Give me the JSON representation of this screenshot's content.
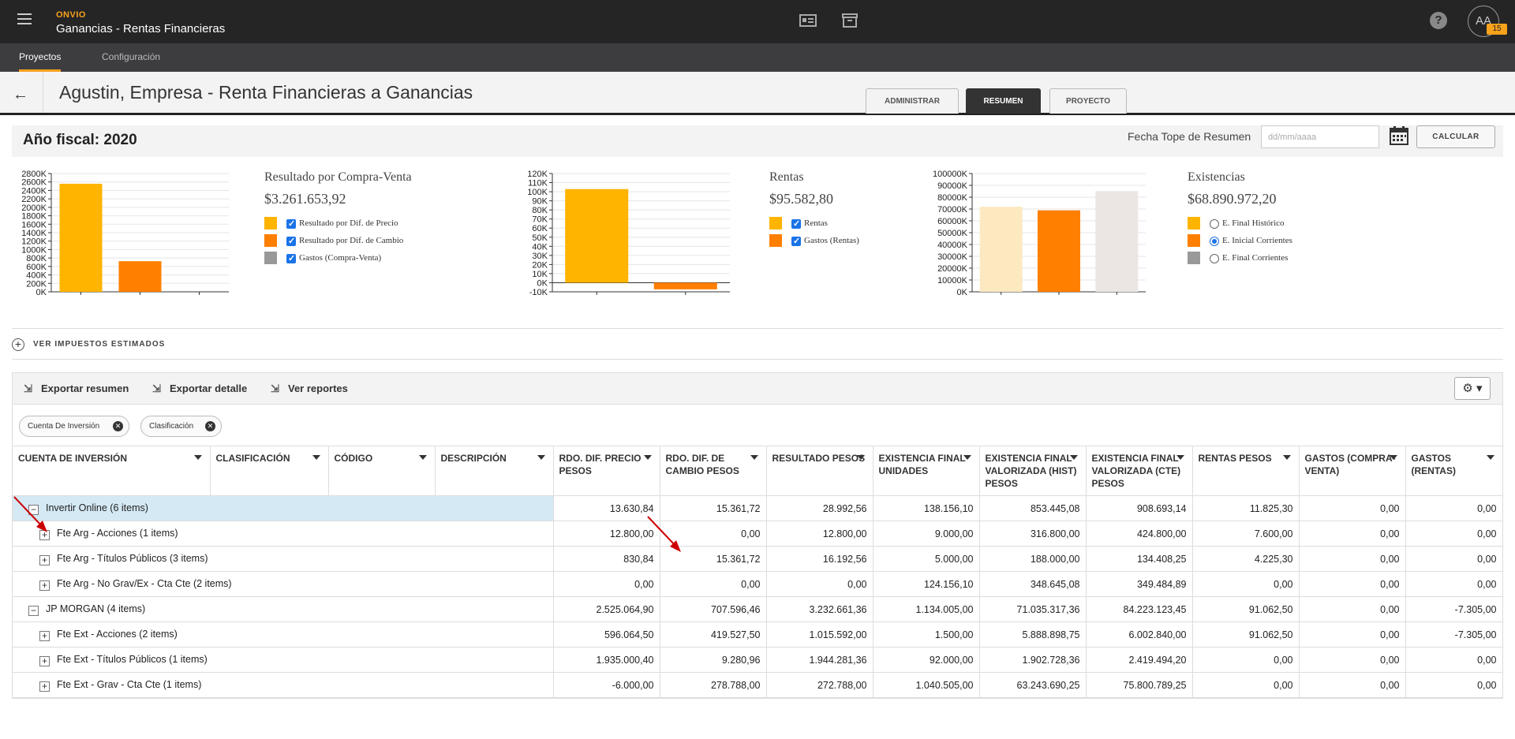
{
  "app": {
    "brand": "ONVIO",
    "title": "Ganancias - Rentas Financieras",
    "user_initials": "AA",
    "notification_count": "15",
    "help_label": "?"
  },
  "nav": {
    "tabs": [
      {
        "label": "Proyectos",
        "active": true
      },
      {
        "label": "Configuración",
        "active": false
      }
    ]
  },
  "header": {
    "title": "Agustin, Empresa - Renta Financieras a Ganancias",
    "tabs": [
      "ADMINISTRAR",
      "RESUMEN",
      "PROYECTO"
    ],
    "active_tab": "RESUMEN"
  },
  "fiscal": {
    "title": "Año fiscal: 2020",
    "fecha_label": "Fecha Tope de Resumen",
    "date_placeholder": "dd/mm/aaaa",
    "calc_label": "CALCULAR"
  },
  "colors": {
    "yellow": "#ffb400",
    "orange": "#ff7f00",
    "gray": "#999999",
    "light_yellow": "#fde9c0",
    "light_gray": "#ebe6e4"
  },
  "chart_data": [
    {
      "type": "bar",
      "categories": [
        "Resultado por Dif. de Precio",
        "Resultado por Dif. de Cambio",
        "Gastos (Compra-Venta)"
      ],
      "values": [
        2558000,
        725000,
        0
      ],
      "ylim": [
        0,
        2800000
      ],
      "yticks": [
        "0K",
        "200K",
        "400K",
        "600K",
        "800K",
        "1000K",
        "1200K",
        "1400K",
        "1600K",
        "1800K",
        "2000K",
        "2200K",
        "2400K",
        "2600K",
        "2800K"
      ],
      "colors": [
        "#ffb400",
        "#ff7f00",
        "#999999"
      ]
    },
    {
      "type": "bar",
      "categories": [
        "Rentas",
        "Gastos (Rentas)"
      ],
      "values": [
        102888,
        -7305
      ],
      "ylim": [
        -10000,
        120000
      ],
      "yticks": [
        "-10K",
        "0K",
        "10K",
        "20K",
        "30K",
        "40K",
        "50K",
        "60K",
        "70K",
        "80K",
        "90K",
        "100K",
        "110K",
        "120K"
      ],
      "colors": [
        "#ffb400",
        "#ff7f00"
      ]
    },
    {
      "type": "bar",
      "categories": [
        "E. Final Histórico",
        "E. Inicial Corrientes",
        "E. Final Corrientes"
      ],
      "values": [
        71888762,
        68890972,
        85181000
      ],
      "ylim": [
        0,
        100000000
      ],
      "yticks": [
        "0K",
        "10000K",
        "20000K",
        "30000K",
        "40000K",
        "50000K",
        "60000K",
        "70000K",
        "80000K",
        "90000K",
        "100000K"
      ],
      "colors": [
        "#fde9c0",
        "#ff7f00",
        "#ebe6e4"
      ]
    }
  ],
  "legends": [
    {
      "title": "Resultado por Compra-Venta",
      "value": "$3.261.653,92",
      "items": [
        {
          "label": "Resultado por Dif. de Precio",
          "checked": true
        },
        {
          "label": "Resultado por Dif. de Cambio",
          "checked": true
        },
        {
          "label": "Gastos (Compra-Venta)",
          "checked": true
        }
      ]
    },
    {
      "title": "Rentas",
      "value": "$95.582,80",
      "items": [
        {
          "label": "Rentas",
          "checked": true
        },
        {
          "label": "Gastos (Rentas)",
          "checked": true
        }
      ]
    },
    {
      "title": "Existencias",
      "value": "$68.890.972,20",
      "items": [
        {
          "label": "E. Final Histórico",
          "checked": false
        },
        {
          "label": "E. Inicial Corrientes",
          "checked": true
        },
        {
          "label": "E. Final Corrientes",
          "checked": false
        }
      ]
    }
  ],
  "impuestos_label": "VER IMPUESTOS ESTIMADOS",
  "toolbar": {
    "export_summary": "Exportar resumen",
    "export_detail": "Exportar detalle",
    "reports": "Ver reportes"
  },
  "chips": [
    "Cuenta De Inversión",
    "Clasificación"
  ],
  "table": {
    "columns": [
      "CUENTA DE INVERSIÓN",
      "CLASIFICACIÓN",
      "CÓDIGO",
      "DESCRIPCIÓN",
      "RDO. DIF. PRECIO PESOS",
      "RDO. DIF. DE CAMBIO PESOS",
      "RESULTADO PESOS",
      "EXISTENCIA FINAL UNIDADES",
      "EXISTENCIA FINAL VALORIZADA (HIST) PESOS",
      "EXISTENCIA FINAL VALORIZADA (CTE) PESOS",
      "RENTAS PESOS",
      "GASTOS (COMPRA-VENTA)",
      "GASTOS (RENTAS)"
    ],
    "rows": [
      {
        "label": "Invertir Online (6 items)",
        "level": 0,
        "expanded": true,
        "selected": true,
        "values": [
          "13.630,84",
          "15.361,72",
          "28.992,56",
          "138.156,10",
          "853.445,08",
          "908.693,14",
          "11.825,30",
          "0,00",
          "0,00"
        ]
      },
      {
        "label": "Fte Arg - Acciones (1 items)",
        "level": 1,
        "expanded": false,
        "values": [
          "12.800,00",
          "0,00",
          "12.800,00",
          "9.000,00",
          "316.800,00",
          "424.800,00",
          "7.600,00",
          "0,00",
          "0,00"
        ]
      },
      {
        "label": "Fte Arg - Títulos Públicos (3 items)",
        "level": 1,
        "expanded": false,
        "values": [
          "830,84",
          "15.361,72",
          "16.192,56",
          "5.000,00",
          "188.000,00",
          "134.408,25",
          "4.225,30",
          "0,00",
          "0,00"
        ]
      },
      {
        "label": "Fte Arg - No Grav/Ex - Cta Cte (2 items)",
        "level": 1,
        "expanded": false,
        "values": [
          "0,00",
          "0,00",
          "0,00",
          "124.156,10",
          "348.645,08",
          "349.484,89",
          "0,00",
          "0,00",
          "0,00"
        ]
      },
      {
        "label": "JP MORGAN (4 items)",
        "level": 0,
        "expanded": true,
        "values": [
          "2.525.064,90",
          "707.596,46",
          "3.232.661,36",
          "1.134.005,00",
          "71.035.317,36",
          "84.223.123,45",
          "91.062,50",
          "0,00",
          "-7.305,00"
        ]
      },
      {
        "label": "Fte Ext - Acciones (2 items)",
        "level": 1,
        "expanded": false,
        "values": [
          "596.064,50",
          "419.527,50",
          "1.015.592,00",
          "1.500,00",
          "5.888.898,75",
          "6.002.840,00",
          "91.062,50",
          "0,00",
          "-7.305,00"
        ]
      },
      {
        "label": "Fte Ext - Títulos Públicos (1 items)",
        "level": 1,
        "expanded": false,
        "values": [
          "1.935.000,40",
          "9.280,96",
          "1.944.281,36",
          "92.000,00",
          "1.902.728,36",
          "2.419.494,20",
          "0,00",
          "0,00",
          "0,00"
        ]
      },
      {
        "label": "Fte Ext - Grav - Cta Cte (1 items)",
        "level": 1,
        "expanded": false,
        "values": [
          "-6.000,00",
          "278.788,00",
          "272.788,00",
          "1.040.505,00",
          "63.243.690,25",
          "75.800.789,25",
          "0,00",
          "0,00",
          "0,00"
        ]
      }
    ]
  }
}
